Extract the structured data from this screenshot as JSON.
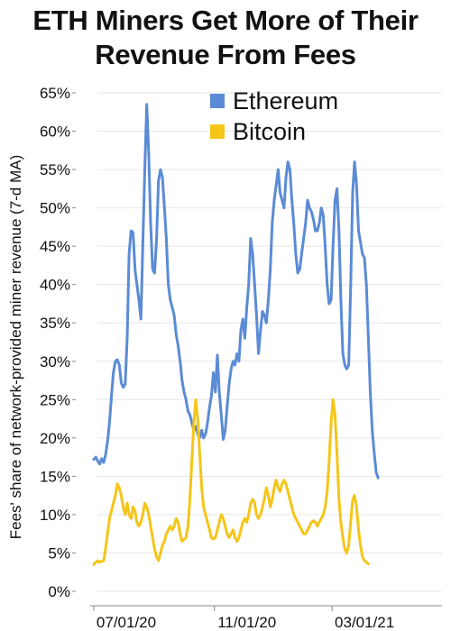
{
  "chart_data": {
    "type": "line",
    "title_line1": "ETH Miners Get More of Their",
    "title_line2": "Revenue From Fees",
    "xlabel": "",
    "ylabel": "Fees' share of network-provided miner revenue (7-d MA)",
    "ylim": [
      0,
      65
    ],
    "yticks": [
      "0%",
      "5%",
      "10%",
      "15%",
      "20%",
      "25%",
      "30%",
      "35%",
      "40%",
      "45%",
      "50%",
      "55%",
      "60%",
      "65%"
    ],
    "xticks": [
      {
        "label": "07/01/20",
        "day": 0
      },
      {
        "label": "11/01/20",
        "day": 123
      },
      {
        "label": "03/01/21",
        "day": 243
      }
    ],
    "xlim_days": [
      0,
      350
    ],
    "grid": "horizontal",
    "legend_position": "top-right",
    "series": [
      {
        "name": "Ethereum",
        "color": "#5b8bd6",
        "points": [
          [
            0,
            17.2
          ],
          [
            2,
            17.5
          ],
          [
            4,
            17.0
          ],
          [
            6,
            16.6
          ],
          [
            8,
            17.3
          ],
          [
            10,
            16.8
          ],
          [
            12,
            17.8
          ],
          [
            14,
            19.5
          ],
          [
            16,
            22.0
          ],
          [
            18,
            25.5
          ],
          [
            20,
            28.5
          ],
          [
            22,
            30.0
          ],
          [
            24,
            30.2
          ],
          [
            26,
            29.5
          ],
          [
            28,
            27.2
          ],
          [
            30,
            26.6
          ],
          [
            32,
            27.0
          ],
          [
            34,
            33.0
          ],
          [
            36,
            44.0
          ],
          [
            38,
            47.0
          ],
          [
            40,
            46.8
          ],
          [
            42,
            42.0
          ],
          [
            44,
            40.0
          ],
          [
            46,
            38.0
          ],
          [
            48,
            35.5
          ],
          [
            50,
            45.0
          ],
          [
            52,
            55.0
          ],
          [
            54,
            63.5
          ],
          [
            56,
            57.0
          ],
          [
            58,
            48.0
          ],
          [
            60,
            42.0
          ],
          [
            62,
            41.5
          ],
          [
            64,
            46.0
          ],
          [
            66,
            53.5
          ],
          [
            68,
            55.0
          ],
          [
            70,
            54.0
          ],
          [
            72,
            50.0
          ],
          [
            74,
            46.0
          ],
          [
            76,
            40.0
          ],
          [
            78,
            38.0
          ],
          [
            80,
            37.0
          ],
          [
            82,
            36.0
          ],
          [
            84,
            33.5
          ],
          [
            86,
            32.0
          ],
          [
            88,
            30.0
          ],
          [
            90,
            27.5
          ],
          [
            92,
            26.0
          ],
          [
            94,
            25.0
          ],
          [
            96,
            23.5
          ],
          [
            98,
            23.0
          ],
          [
            100,
            22.0
          ],
          [
            102,
            21.0
          ],
          [
            104,
            21.5
          ],
          [
            106,
            20.5
          ],
          [
            108,
            20.0
          ],
          [
            110,
            21.0
          ],
          [
            112,
            20.0
          ],
          [
            114,
            20.5
          ],
          [
            116,
            22.0
          ],
          [
            118,
            24.0
          ],
          [
            120,
            25.5
          ],
          [
            122,
            28.5
          ],
          [
            124,
            26.0
          ],
          [
            126,
            30.8
          ],
          [
            128,
            26.0
          ],
          [
            130,
            23.0
          ],
          [
            132,
            19.8
          ],
          [
            134,
            21.0
          ],
          [
            136,
            24.0
          ],
          [
            138,
            27.0
          ],
          [
            140,
            29.0
          ],
          [
            142,
            30.0
          ],
          [
            144,
            29.5
          ],
          [
            146,
            31.0
          ],
          [
            148,
            30.0
          ],
          [
            150,
            34.0
          ],
          [
            152,
            35.5
          ],
          [
            154,
            33.0
          ],
          [
            156,
            37.0
          ],
          [
            158,
            40.0
          ],
          [
            160,
            46.0
          ],
          [
            162,
            44.0
          ],
          [
            164,
            40.0
          ],
          [
            166,
            36.0
          ],
          [
            168,
            31.0
          ],
          [
            170,
            34.0
          ],
          [
            172,
            36.5
          ],
          [
            174,
            36.0
          ],
          [
            176,
            35.0
          ],
          [
            178,
            38.0
          ],
          [
            180,
            42.0
          ],
          [
            182,
            48.0
          ],
          [
            184,
            51.0
          ],
          [
            186,
            53.0
          ],
          [
            188,
            55.0
          ],
          [
            190,
            52.0
          ],
          [
            192,
            51.0
          ],
          [
            194,
            50.0
          ],
          [
            196,
            54.0
          ],
          [
            198,
            56.0
          ],
          [
            200,
            55.0
          ],
          [
            202,
            51.0
          ],
          [
            204,
            48.0
          ],
          [
            206,
            44.0
          ],
          [
            208,
            41.5
          ],
          [
            210,
            42.0
          ],
          [
            212,
            44.0
          ],
          [
            214,
            46.0
          ],
          [
            216,
            48.0
          ],
          [
            218,
            51.0
          ],
          [
            220,
            50.0
          ],
          [
            222,
            49.5
          ],
          [
            224,
            48.5
          ],
          [
            226,
            47.0
          ],
          [
            228,
            47.0
          ],
          [
            230,
            48.0
          ],
          [
            232,
            50.0
          ],
          [
            234,
            49.0
          ],
          [
            236,
            45.0
          ],
          [
            238,
            40.0
          ],
          [
            240,
            37.5
          ],
          [
            242,
            38.0
          ],
          [
            244,
            45.0
          ],
          [
            246,
            51.0
          ],
          [
            248,
            52.5
          ],
          [
            250,
            47.0
          ],
          [
            252,
            38.0
          ],
          [
            254,
            31.0
          ],
          [
            256,
            29.5
          ],
          [
            258,
            29.0
          ],
          [
            260,
            29.5
          ],
          [
            262,
            40.0
          ],
          [
            264,
            52.0
          ],
          [
            266,
            56.0
          ],
          [
            268,
            53.0
          ],
          [
            270,
            47.0
          ],
          [
            272,
            45.5
          ],
          [
            274,
            44.0
          ],
          [
            276,
            43.5
          ],
          [
            278,
            40.0
          ],
          [
            280,
            33.0
          ],
          [
            282,
            26.0
          ],
          [
            284,
            21.0
          ],
          [
            286,
            18.0
          ],
          [
            288,
            15.5
          ],
          [
            290,
            14.8
          ]
        ]
      },
      {
        "name": "Bitcoin",
        "color": "#f5c518",
        "points": [
          [
            0,
            3.5
          ],
          [
            2,
            3.8
          ],
          [
            4,
            4.0
          ],
          [
            6,
            3.8
          ],
          [
            8,
            3.9
          ],
          [
            10,
            4.0
          ],
          [
            12,
            5.5
          ],
          [
            14,
            7.5
          ],
          [
            16,
            9.5
          ],
          [
            18,
            10.5
          ],
          [
            20,
            11.5
          ],
          [
            22,
            12.5
          ],
          [
            24,
            14.0
          ],
          [
            26,
            13.5
          ],
          [
            28,
            12.5
          ],
          [
            30,
            11.0
          ],
          [
            32,
            10.0
          ],
          [
            34,
            11.5
          ],
          [
            36,
            10.0
          ],
          [
            38,
            9.5
          ],
          [
            40,
            11.0
          ],
          [
            42,
            10.5
          ],
          [
            44,
            9.0
          ],
          [
            46,
            8.5
          ],
          [
            48,
            9.0
          ],
          [
            50,
            10.0
          ],
          [
            52,
            11.5
          ],
          [
            54,
            11.0
          ],
          [
            56,
            10.0
          ],
          [
            58,
            8.5
          ],
          [
            60,
            7.0
          ],
          [
            62,
            5.5
          ],
          [
            64,
            4.5
          ],
          [
            66,
            4.0
          ],
          [
            68,
            5.0
          ],
          [
            70,
            6.0
          ],
          [
            72,
            6.5
          ],
          [
            74,
            7.5
          ],
          [
            76,
            8.0
          ],
          [
            78,
            8.5
          ],
          [
            80,
            8.0
          ],
          [
            82,
            8.5
          ],
          [
            84,
            9.5
          ],
          [
            86,
            9.0
          ],
          [
            88,
            7.5
          ],
          [
            90,
            6.5
          ],
          [
            92,
            6.8
          ],
          [
            94,
            7.0
          ],
          [
            96,
            8.5
          ],
          [
            98,
            12.0
          ],
          [
            100,
            17.0
          ],
          [
            102,
            22.0
          ],
          [
            104,
            25.0
          ],
          [
            106,
            22.5
          ],
          [
            108,
            18.0
          ],
          [
            110,
            13.5
          ],
          [
            112,
            11.0
          ],
          [
            114,
            10.0
          ],
          [
            116,
            9.0
          ],
          [
            118,
            8.0
          ],
          [
            120,
            7.0
          ],
          [
            122,
            6.8
          ],
          [
            124,
            7.0
          ],
          [
            126,
            8.0
          ],
          [
            128,
            9.0
          ],
          [
            130,
            10.0
          ],
          [
            132,
            9.5
          ],
          [
            134,
            8.5
          ],
          [
            136,
            7.5
          ],
          [
            138,
            7.0
          ],
          [
            140,
            7.5
          ],
          [
            142,
            8.0
          ],
          [
            144,
            7.0
          ],
          [
            146,
            6.5
          ],
          [
            148,
            7.0
          ],
          [
            150,
            8.0
          ],
          [
            152,
            9.0
          ],
          [
            154,
            9.5
          ],
          [
            156,
            9.0
          ],
          [
            158,
            10.0
          ],
          [
            160,
            11.5
          ],
          [
            162,
            12.0
          ],
          [
            164,
            11.5
          ],
          [
            166,
            10.0
          ],
          [
            168,
            9.5
          ],
          [
            170,
            10.0
          ],
          [
            172,
            11.0
          ],
          [
            174,
            12.0
          ],
          [
            176,
            13.5
          ],
          [
            178,
            12.5
          ],
          [
            180,
            11.0
          ],
          [
            182,
            12.0
          ],
          [
            184,
            13.5
          ],
          [
            186,
            14.5
          ],
          [
            188,
            13.5
          ],
          [
            190,
            13.0
          ],
          [
            192,
            14.0
          ],
          [
            194,
            14.5
          ],
          [
            196,
            14.0
          ],
          [
            198,
            13.0
          ],
          [
            200,
            12.0
          ],
          [
            202,
            11.0
          ],
          [
            204,
            10.0
          ],
          [
            206,
            9.5
          ],
          [
            208,
            9.0
          ],
          [
            210,
            8.5
          ],
          [
            212,
            8.0
          ],
          [
            214,
            7.5
          ],
          [
            216,
            7.5
          ],
          [
            218,
            8.0
          ],
          [
            220,
            8.5
          ],
          [
            222,
            9.0
          ],
          [
            224,
            9.2
          ],
          [
            226,
            9.0
          ],
          [
            228,
            8.5
          ],
          [
            230,
            9.0
          ],
          [
            232,
            9.5
          ],
          [
            234,
            10.0
          ],
          [
            236,
            11.0
          ],
          [
            238,
            13.0
          ],
          [
            240,
            17.0
          ],
          [
            242,
            22.0
          ],
          [
            244,
            25.0
          ],
          [
            246,
            23.0
          ],
          [
            248,
            18.0
          ],
          [
            250,
            12.0
          ],
          [
            252,
            9.0
          ],
          [
            254,
            7.0
          ],
          [
            256,
            5.5
          ],
          [
            258,
            5.0
          ],
          [
            260,
            6.0
          ],
          [
            262,
            9.0
          ],
          [
            264,
            12.0
          ],
          [
            266,
            12.5
          ],
          [
            268,
            11.0
          ],
          [
            270,
            8.0
          ],
          [
            272,
            6.0
          ],
          [
            274,
            4.5
          ],
          [
            276,
            4.0
          ],
          [
            278,
            3.8
          ],
          [
            280,
            3.6
          ]
        ]
      }
    ]
  }
}
